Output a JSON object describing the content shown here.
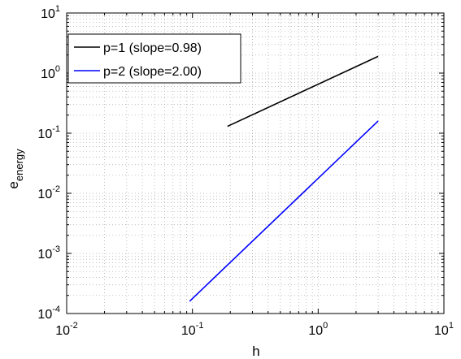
{
  "chart_data": {
    "type": "line",
    "x_scale": "log",
    "y_scale": "log",
    "xlim": [
      0.01,
      10
    ],
    "ylim": [
      0.0001,
      10
    ],
    "xlabel": "h",
    "ylabel": {
      "base": "e",
      "subscript": "energy"
    },
    "grid": "major and minor, dotted",
    "legend_position": "top-left",
    "x_ticks": [
      {
        "base": "10",
        "exp": "-2"
      },
      {
        "base": "10",
        "exp": "-1"
      },
      {
        "base": "10",
        "exp": "0"
      },
      {
        "base": "10",
        "exp": "1"
      }
    ],
    "y_ticks": [
      {
        "base": "10",
        "exp": "-4"
      },
      {
        "base": "10",
        "exp": "-3"
      },
      {
        "base": "10",
        "exp": "-2"
      },
      {
        "base": "10",
        "exp": "-1"
      },
      {
        "base": "10",
        "exp": "0"
      },
      {
        "base": "10",
        "exp": "1"
      }
    ],
    "series": [
      {
        "name": "p=1 (slope=0.98)",
        "color": "#000000",
        "x": [
          0.19,
          3.0
        ],
        "y": [
          0.13,
          1.9
        ]
      },
      {
        "name": "p=2 (slope=2.00)",
        "color": "#0000ff",
        "x": [
          0.095,
          3.0
        ],
        "y": [
          0.00016,
          0.16
        ]
      }
    ]
  }
}
